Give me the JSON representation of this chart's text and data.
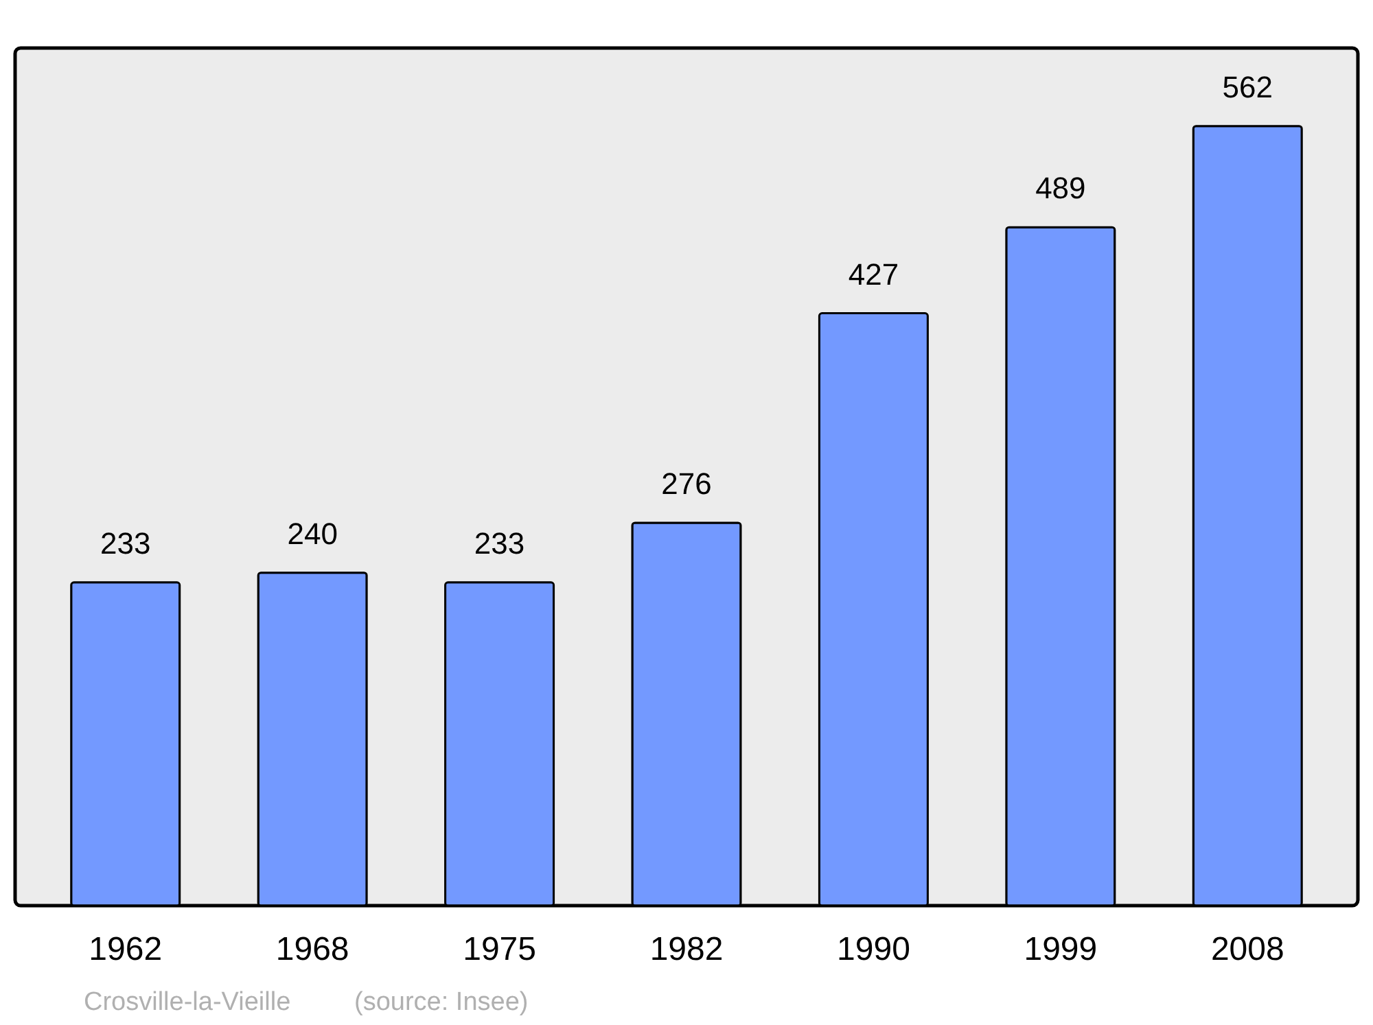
{
  "chart_data": {
    "type": "bar",
    "categories": [
      "1962",
      "1968",
      "1975",
      "1982",
      "1990",
      "1999",
      "2008"
    ],
    "values": [
      233,
      240,
      233,
      276,
      427,
      489,
      562
    ],
    "color": "#7399ff",
    "data_labels": true,
    "tick_labels": "x",
    "annotations": [
      "Crosville-la-Vieille",
      "(source: Insee)"
    ]
  }
}
